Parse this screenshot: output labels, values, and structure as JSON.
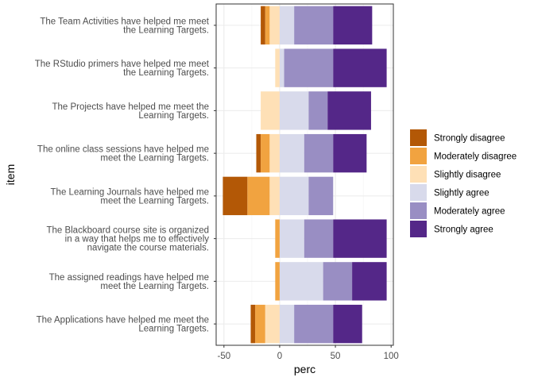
{
  "chart_data": {
    "type": "bar",
    "orientation": "horizontal",
    "stacked": "diverging",
    "xlabel": "perc",
    "ylabel": "item",
    "xlim": [
      -57,
      102
    ],
    "xticks": [
      -50,
      0,
      50,
      100
    ],
    "grid": true,
    "legend_position": "right",
    "categories": [
      [
        "The Team Activities have helped me meet",
        "the Learning Targets."
      ],
      [
        "The RStudio primers have helped me meet",
        "the Learning Targets."
      ],
      [
        "The Projects have helped me meet the",
        "Learning Targets."
      ],
      [
        "The online class sessions have helped me",
        "meet the Learning Targets."
      ],
      [
        "The Learning Journals have helped me",
        "meet the Learning Targets."
      ],
      [
        "The Blackboard course site is organized",
        "in a way that helps me to effectively",
        "navigate the course materials."
      ],
      [
        "The assigned readings have helped me",
        "meet the Learning Targets."
      ],
      [
        "The Applications have helped me meet the",
        "Learning Targets."
      ]
    ],
    "series": [
      {
        "name": "Strongly disagree",
        "color": "#b35806",
        "side": "negative",
        "values": [
          4,
          0,
          0,
          4,
          22,
          0,
          0,
          4
        ]
      },
      {
        "name": "Moderately disagree",
        "color": "#f1a340",
        "side": "negative",
        "values": [
          4,
          0,
          0,
          8,
          20,
          4,
          4,
          9
        ]
      },
      {
        "name": "Slightly disagree",
        "color": "#fee0b6",
        "side": "negative",
        "values": [
          9,
          4,
          17,
          9,
          9,
          0,
          0,
          13
        ]
      },
      {
        "name": "Slightly agree",
        "color": "#d8daeb",
        "side": "positive",
        "values": [
          13,
          4,
          26,
          22,
          26,
          22,
          39,
          13
        ]
      },
      {
        "name": "Moderately agree",
        "color": "#998ec3",
        "side": "positive",
        "values": [
          35,
          44,
          17,
          26,
          22,
          26,
          26,
          35
        ]
      },
      {
        "name": "Strongly agree",
        "color": "#542788",
        "side": "positive",
        "values": [
          35,
          48,
          39,
          30,
          0,
          48,
          31,
          26
        ]
      }
    ]
  }
}
